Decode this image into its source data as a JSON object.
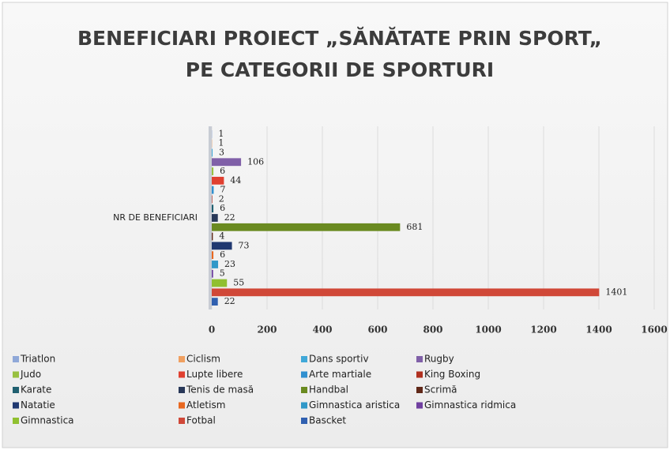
{
  "chart_data": {
    "type": "bar",
    "orientation": "horizontal",
    "title": [
      "BENEFICIARI PROIECT „SĂNĂTATE PRIN SPORT„",
      "PE CATEGORII DE SPORTURI"
    ],
    "categories": [
      "NR DE BENEFICIARI"
    ],
    "xlim": [
      0,
      1600
    ],
    "xticks": [
      0,
      200,
      400,
      600,
      800,
      1000,
      1200,
      1400,
      1600
    ],
    "grid": true,
    "legend": "bottom",
    "series": [
      {
        "name": "Triatlon",
        "color": "#8fa8d8",
        "values": [
          1
        ]
      },
      {
        "name": "Ciclism",
        "color": "#f0a060",
        "values": [
          1
        ]
      },
      {
        "name": "Dans sportiv",
        "color": "#40a8d8",
        "values": [
          3
        ]
      },
      {
        "name": "Rugby",
        "color": "#8060a8",
        "values": [
          106
        ]
      },
      {
        "name": "Judo",
        "color": "#98c040",
        "values": [
          6
        ]
      },
      {
        "name": "Lupte libere",
        "color": "#e04030",
        "values": [
          44
        ]
      },
      {
        "name": "Arte martiale",
        "color": "#3090d0",
        "values": [
          7
        ]
      },
      {
        "name": "King Boxing",
        "color": "#b03020",
        "values": [
          2
        ]
      },
      {
        "name": "Karate",
        "color": "#206070",
        "values": [
          6
        ]
      },
      {
        "name": "Tenis de masă",
        "color": "#283858",
        "values": [
          22
        ]
      },
      {
        "name": "Handbal",
        "color": "#6a8a20",
        "values": [
          681
        ]
      },
      {
        "name": "Scrimă",
        "color": "#602818",
        "values": [
          4
        ]
      },
      {
        "name": "Natatie",
        "color": "#203870",
        "values": [
          73
        ]
      },
      {
        "name": "Atletism",
        "color": "#e86820",
        "values": [
          6
        ]
      },
      {
        "name": "Gimnastica aristica",
        "color": "#3098c8",
        "values": [
          23
        ]
      },
      {
        "name": "Gimnastica ridmica",
        "color": "#7040a0",
        "values": [
          5
        ]
      },
      {
        "name": "Gimnastica",
        "color": "#90c030",
        "values": [
          55
        ]
      },
      {
        "name": "Fotbal",
        "color": "#d04838",
        "values": [
          1401
        ]
      },
      {
        "name": "Bascket",
        "color": "#3060b0",
        "values": [
          22
        ]
      }
    ]
  }
}
